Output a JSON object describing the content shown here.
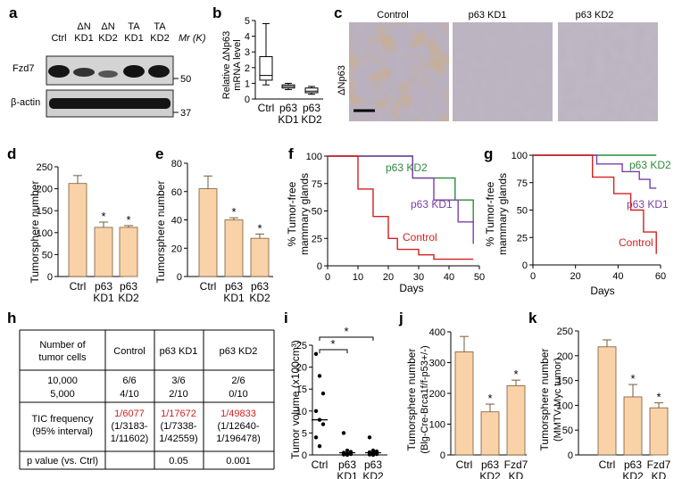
{
  "panels": [
    "a",
    "b",
    "c",
    "d",
    "e",
    "f",
    "g",
    "h",
    "i",
    "j",
    "k"
  ],
  "colors": {
    "bar": "#f9d2a8",
    "bar_stroke": "#7a5a3a",
    "control": "#d42020",
    "kd1": "#7a3fa8",
    "kd2": "#2f8a3a",
    "tic_red": "#d42020"
  },
  "a": {
    "lanes": [
      [
        "Ctrl",
        ""
      ],
      [
        "ΔN",
        "KD1"
      ],
      [
        "ΔN",
        "KD2"
      ],
      [
        "TA",
        "KD1"
      ],
      [
        "TA",
        "KD2"
      ]
    ],
    "mr_label": "Mr (K)",
    "bands": [
      "Fzd7",
      "β-actin"
    ],
    "markers": [
      "50",
      "37"
    ]
  },
  "b": {
    "ylabel1": "Relative ΔNp63",
    "ylabel2": "mRNA level",
    "yticks": [
      "0",
      "1",
      "2",
      "3",
      "4",
      "5"
    ],
    "cats": [
      [
        "Ctrl",
        ""
      ],
      [
        "p63",
        "KD1"
      ],
      [
        "p63",
        "KD2"
      ]
    ],
    "chart_data": {
      "type": "box",
      "categories": [
        "Ctrl",
        "p63 KD1",
        "p63 KD2"
      ],
      "boxes": [
        {
          "min": 0.9,
          "q1": 1.2,
          "median": 1.5,
          "q3": 2.7,
          "max": 4.8
        },
        {
          "min": 0.6,
          "q1": 0.7,
          "median": 0.8,
          "q3": 0.9,
          "max": 1.0
        },
        {
          "min": 0.3,
          "q1": 0.4,
          "median": 0.5,
          "q3": 0.7,
          "max": 0.8
        }
      ],
      "ylim": [
        0,
        5
      ]
    }
  },
  "c": {
    "titles": [
      "Control",
      "p63 KD1",
      "p63 KD2"
    ],
    "side_label": "ΔNp63"
  },
  "d": {
    "ylabel": "Tumorsphere number",
    "yticks": [
      "0",
      "50",
      "100",
      "150",
      "200",
      "250"
    ],
    "cats": [
      [
        "Ctrl",
        ""
      ],
      [
        "p63",
        "KD1"
      ],
      [
        "p63",
        "KD2"
      ]
    ],
    "chart_data": {
      "type": "bar",
      "categories": [
        "Ctrl",
        "p63 KD1",
        "p63 KD2"
      ],
      "values": [
        212,
        112,
        112
      ],
      "errors": [
        18,
        12,
        4
      ],
      "sig": [
        "",
        "*",
        "*"
      ],
      "ylim": [
        0,
        250
      ]
    }
  },
  "e": {
    "ylabel": "Tumorsphere number",
    "yticks": [
      "0",
      "20",
      "40",
      "60",
      "80"
    ],
    "cats": [
      [
        "Ctrl",
        ""
      ],
      [
        "p63",
        "KD1"
      ],
      [
        "p63",
        "KD2"
      ]
    ],
    "chart_data": {
      "type": "bar",
      "categories": [
        "Ctrl",
        "p63 KD1",
        "p63 KD2"
      ],
      "values": [
        62,
        40,
        27
      ],
      "errors": [
        9,
        1.5,
        3
      ],
      "sig": [
        "",
        "*",
        "*"
      ],
      "ylim": [
        0,
        80
      ]
    }
  },
  "f": {
    "ylabel1": "% Tumor-free",
    "ylabel2": "mammary glands",
    "xlabel": "Days",
    "yticks": [
      "0",
      "25",
      "50",
      "75",
      "100"
    ],
    "xticks": [
      "0",
      "10",
      "20",
      "30",
      "40",
      "50"
    ],
    "labels": [
      "p63 KD2",
      "p63 KD1",
      "Control"
    ],
    "chart_data": {
      "type": "line",
      "xlim": [
        0,
        50
      ],
      "ylim": [
        0,
        100
      ],
      "series": [
        {
          "name": "p63 KD2",
          "points": [
            [
              0,
              100
            ],
            [
              28,
              100
            ],
            [
              28,
              80
            ],
            [
              42,
              80
            ],
            [
              42,
              60
            ],
            [
              48,
              60
            ],
            [
              48,
              40
            ]
          ]
        },
        {
          "name": "p63 KD1",
          "points": [
            [
              0,
              100
            ],
            [
              28,
              100
            ],
            [
              28,
              80
            ],
            [
              35,
              80
            ],
            [
              35,
              60
            ],
            [
              43,
              60
            ],
            [
              43,
              40
            ],
            [
              48,
              40
            ],
            [
              48,
              20
            ]
          ]
        },
        {
          "name": "Control",
          "points": [
            [
              0,
              100
            ],
            [
              10,
              100
            ],
            [
              10,
              70
            ],
            [
              15,
              70
            ],
            [
              15,
              45
            ],
            [
              20,
              45
            ],
            [
              20,
              25
            ],
            [
              23,
              25
            ],
            [
              23,
              15
            ],
            [
              30,
              15
            ],
            [
              30,
              10
            ],
            [
              35,
              10
            ],
            [
              35,
              6
            ],
            [
              48,
              6
            ]
          ]
        }
      ]
    }
  },
  "g": {
    "ylabel1": "% Tumor-free",
    "ylabel2": "mammary glands",
    "xlabel": "Days",
    "yticks": [
      "0",
      "25",
      "50",
      "75",
      "100"
    ],
    "xticks": [
      "0",
      "20",
      "40",
      "60"
    ],
    "labels": [
      "p63 KD2",
      "p63 KD1",
      "Control"
    ],
    "chart_data": {
      "type": "line",
      "xlim": [
        0,
        60
      ],
      "ylim": [
        0,
        100
      ],
      "series": [
        {
          "name": "p63 KD2",
          "points": [
            [
              0,
              100
            ],
            [
              58,
              100
            ]
          ]
        },
        {
          "name": "p63 KD1",
          "points": [
            [
              0,
              100
            ],
            [
              30,
              100
            ],
            [
              30,
              92
            ],
            [
              42,
              92
            ],
            [
              42,
              85
            ],
            [
              50,
              85
            ],
            [
              50,
              78
            ],
            [
              55,
              78
            ],
            [
              55,
              70
            ],
            [
              58,
              70
            ]
          ]
        },
        {
          "name": "Control",
          "points": [
            [
              0,
              100
            ],
            [
              28,
              100
            ],
            [
              28,
              80
            ],
            [
              38,
              80
            ],
            [
              38,
              65
            ],
            [
              46,
              65
            ],
            [
              46,
              50
            ],
            [
              52,
              50
            ],
            [
              52,
              30
            ],
            [
              58,
              30
            ],
            [
              58,
              10
            ]
          ]
        }
      ]
    }
  },
  "h": {
    "headers": [
      "Number of tumor cells",
      "Control",
      "p63 KD1",
      "p63 KD2"
    ],
    "rows": [
      [
        "10,000",
        "6/6",
        "3/6",
        "2/6"
      ],
      [
        "5,000",
        "4/10",
        "2/10",
        "0/10"
      ]
    ],
    "tic_label": [
      "TIC frequency",
      "(95% interval)"
    ],
    "tic": [
      [
        "1/6077",
        "(1/3183-",
        "1/11602)"
      ],
      [
        "1/17672",
        "(1/7338-",
        "1/42559)"
      ],
      [
        "1/49833",
        "(1/12640-",
        "1/196478)"
      ]
    ],
    "p_label": "p value (vs. Ctrl)",
    "p_values": [
      "",
      "0.05",
      "0.001"
    ]
  },
  "i": {
    "ylabel": "Tumor volume (x100cm³)",
    "yticks": [
      "0",
      "5",
      "10",
      "15",
      "20",
      "25"
    ],
    "cats": [
      [
        "Ctrl",
        ""
      ],
      [
        "p63",
        "KD1"
      ],
      [
        "p63",
        "KD2"
      ]
    ],
    "sig": [
      "*",
      "*"
    ],
    "chart_data": {
      "type": "scatter",
      "categories": [
        "Ctrl",
        "p63 KD1",
        "p63 KD2"
      ],
      "points": [
        [
          23,
          18,
          14,
          10,
          8,
          7,
          4,
          2
        ],
        [
          5,
          1,
          0.7,
          0.5,
          0.3,
          0.2,
          0.1,
          0
        ],
        [
          4,
          1,
          0.8,
          0.6,
          0.4,
          0.2,
          0.1,
          0
        ]
      ],
      "medians": [
        8,
        0.5,
        0.5
      ],
      "ylim": [
        0,
        25
      ]
    }
  },
  "j": {
    "ylabel1": "Tumorsphere number",
    "ylabel2": "(Blg-Cre-Brca1f/f-p53+/-)",
    "yticks": [
      "0",
      "100",
      "200",
      "300",
      "400"
    ],
    "cats": [
      [
        "Ctrl",
        ""
      ],
      [
        "p63",
        "KD2"
      ],
      [
        "Fzd7",
        "KD"
      ]
    ],
    "chart_data": {
      "type": "bar",
      "categories": [
        "Ctrl",
        "p63 KD2",
        "Fzd7 KD"
      ],
      "values": [
        335,
        140,
        225
      ],
      "errors": [
        50,
        25,
        18
      ],
      "sig": [
        "",
        "*",
        "*"
      ],
      "ylim": [
        0,
        400
      ]
    }
  },
  "k": {
    "ylabel1": "Tumorsphere number",
    "ylabel2": "(MMTV-Myc tumor)",
    "yticks": [
      "0",
      "50",
      "100",
      "150",
      "200",
      "250"
    ],
    "cats": [
      [
        "Ctrl",
        ""
      ],
      [
        "p63",
        "KD2"
      ],
      [
        "Fzd7",
        "KD"
      ]
    ],
    "chart_data": {
      "type": "bar",
      "categories": [
        "Ctrl",
        "p63 KD2",
        "Fzd7 KD"
      ],
      "values": [
        218,
        117,
        95
      ],
      "errors": [
        14,
        25,
        10
      ],
      "sig": [
        "",
        "*",
        "*"
      ],
      "ylim": [
        0,
        250
      ]
    }
  }
}
